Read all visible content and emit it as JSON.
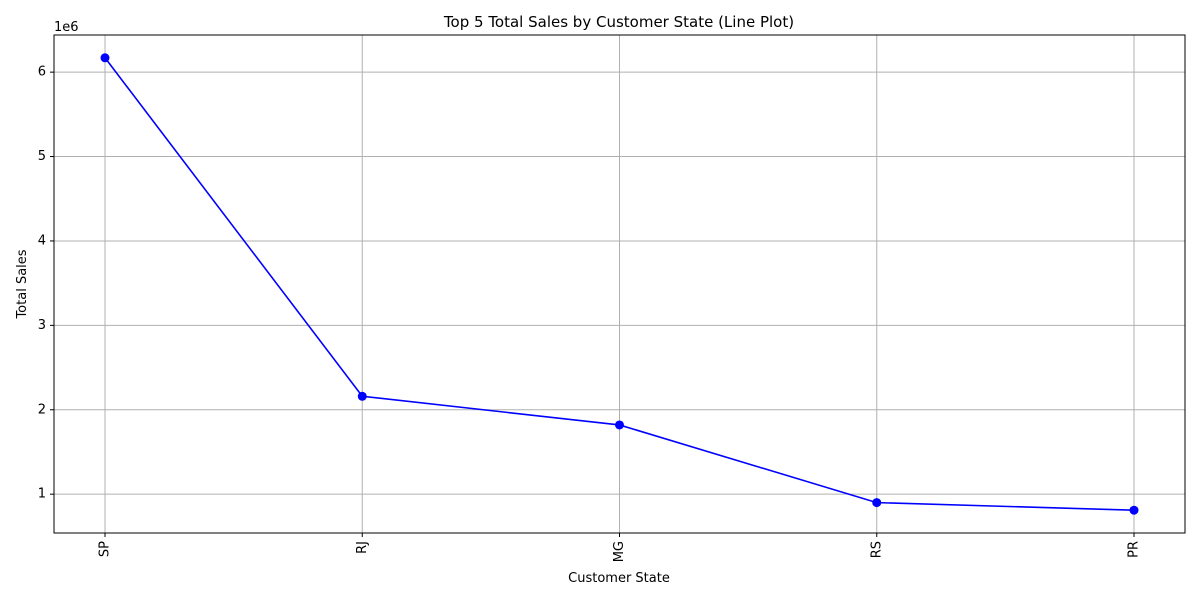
{
  "chart_data": {
    "type": "line",
    "title": "Top 5 Total Sales by Customer State (Line Plot)",
    "xlabel": "Customer State",
    "ylabel": "Total Sales",
    "y_offset_label": "1e6",
    "categories": [
      "SP",
      "RJ",
      "MG",
      "RS",
      "PR"
    ],
    "series": [
      {
        "name": "Total Sales",
        "color": "#0000ff",
        "marker": "circle",
        "values": [
          6170000,
          2160000,
          1820000,
          900000,
          810000
        ]
      }
    ],
    "ylim": [
      540000,
      6440000
    ],
    "yticks": [
      1000000,
      2000000,
      3000000,
      4000000,
      5000000,
      6000000
    ],
    "ytick_labels": [
      "1",
      "2",
      "3",
      "4",
      "5",
      "6"
    ],
    "grid": true,
    "x_tick_rotation": "vertical"
  }
}
